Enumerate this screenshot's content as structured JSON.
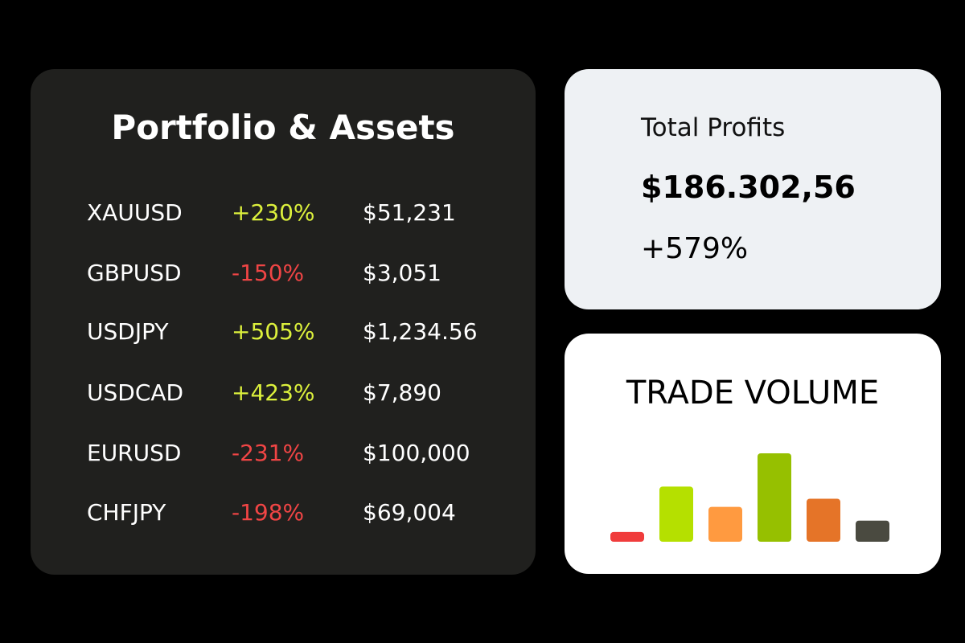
{
  "portfolio": {
    "title": "Portfolio & Assets",
    "rows": [
      [
        "XAUUSD",
        "+230%",
        "$51,231"
      ],
      [
        "GBPUSD",
        "-150%",
        "$3,051"
      ],
      [
        "USDJPY",
        "+505%",
        "$1,234.56"
      ],
      [
        "USDCAD",
        "+423%",
        "$7,890"
      ],
      [
        "EURUSD",
        "-231%",
        "$100,000"
      ],
      [
        "CHFJPY",
        "-198%",
        "$69,004"
      ]
    ]
  },
  "total_profits": {
    "label": "Total Profits",
    "amount": "$186.302,56",
    "change": "+579%"
  },
  "chart_data": {
    "type": "bar",
    "title": "TRADE VOLUME",
    "values": [
      12,
      68,
      43,
      109,
      53,
      26
    ],
    "colors": [
      "#f03c3c",
      "#b5e000",
      "#ff9a40",
      "#96c000",
      "#e57428",
      "#4a4a40"
    ]
  }
}
